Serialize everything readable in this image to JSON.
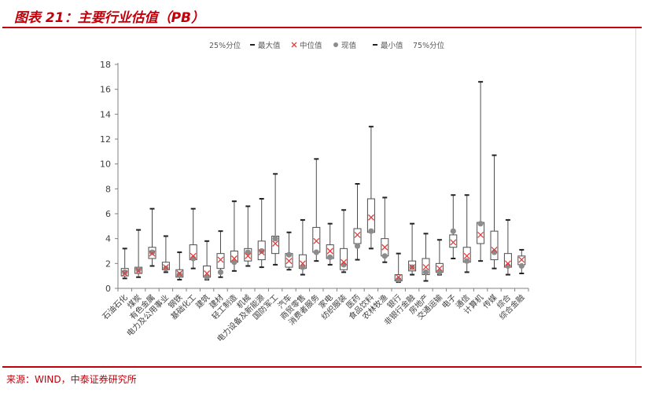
{
  "title": "图表 21：主要行业估值（PB）",
  "source": "来源：WIND，中泰证券研究所",
  "colors": {
    "accent": "#c0000b",
    "box": "#4d4d4d",
    "median": "#e04040",
    "current": "#8c8c8c"
  },
  "chart_data": {
    "type": "box",
    "legend": {
      "position": "top",
      "items": [
        "25%分位",
        "最大值",
        "中位值",
        "现值",
        "最小值",
        "75%分位"
      ]
    },
    "ylim": [
      0,
      18
    ],
    "yticks": [
      "0",
      "2",
      "4",
      "6",
      "8",
      "10",
      "12",
      "14",
      "16",
      "18"
    ],
    "grid": false,
    "categories": [
      "石油石化",
      "煤炭",
      "有色金属",
      "电力及公用事业",
      "钢铁",
      "基础化工",
      "建筑",
      "建材",
      "轻工制造",
      "机械",
      "电力设备及新能源",
      "国防军工",
      "汽车",
      "商贸零售",
      "消费者服务",
      "家电",
      "纺织服装",
      "医药",
      "食品饮料",
      "农林牧渔",
      "银行",
      "非银行金融",
      "房地产",
      "交通运输",
      "电子",
      "通信",
      "计算机",
      "传媒",
      "综合",
      "综合金融"
    ],
    "series": [
      {
        "name": "最大值",
        "values": [
          3.2,
          4.7,
          6.4,
          4.2,
          2.9,
          6.4,
          3.8,
          4.6,
          7.0,
          6.6,
          7.2,
          9.2,
          4.5,
          5.5,
          10.4,
          5.2,
          6.3,
          8.4,
          13.0,
          7.3,
          2.8,
          5.2,
          4.4,
          3.9,
          7.5,
          7.5,
          16.6,
          10.7,
          5.5,
          3.1
        ]
      },
      {
        "name": "75%分位",
        "values": [
          1.6,
          1.7,
          3.3,
          2.1,
          1.5,
          3.5,
          1.8,
          2.8,
          3.0,
          3.2,
          3.8,
          4.2,
          2.8,
          2.7,
          4.9,
          3.5,
          3.2,
          4.8,
          7.2,
          4.0,
          1.1,
          2.2,
          2.4,
          2.0,
          4.3,
          3.3,
          5.3,
          4.6,
          2.8,
          2.6
        ]
      },
      {
        "name": "中位值",
        "values": [
          1.2,
          1.4,
          2.8,
          1.7,
          1.2,
          2.6,
          1.2,
          2.3,
          2.4,
          2.6,
          2.9,
          3.6,
          2.2,
          2.0,
          3.8,
          3.0,
          2.1,
          4.3,
          5.7,
          3.3,
          0.9,
          1.7,
          1.7,
          1.6,
          3.7,
          2.6,
          4.3,
          3.1,
          2.0,
          2.3
        ]
      },
      {
        "name": "25%分位",
        "values": [
          1.0,
          1.2,
          2.4,
          1.5,
          0.9,
          2.3,
          0.9,
          1.6,
          2.1,
          2.2,
          2.3,
          2.8,
          1.7,
          1.6,
          2.9,
          2.4,
          1.5,
          3.6,
          4.5,
          2.6,
          0.6,
          1.4,
          1.1,
          1.3,
          3.3,
          2.1,
          3.6,
          2.3,
          1.7,
          1.9
        ]
      },
      {
        "name": "最小值",
        "values": [
          0.8,
          0.9,
          1.8,
          1.3,
          0.7,
          1.6,
          0.7,
          0.9,
          1.4,
          1.8,
          1.7,
          1.9,
          1.5,
          1.1,
          2.2,
          1.9,
          1.3,
          2.3,
          3.2,
          2.1,
          0.5,
          1.1,
          0.6,
          1.1,
          2.4,
          1.3,
          2.2,
          1.6,
          1.1,
          1.2
        ]
      },
      {
        "name": "现值",
        "values": [
          1.3,
          1.5,
          2.9,
          1.6,
          1.1,
          2.4,
          0.9,
          1.3,
          2.1,
          2.9,
          3.0,
          4.0,
          2.7,
          1.7,
          2.9,
          2.5,
          1.9,
          3.4,
          4.6,
          2.6,
          0.7,
          1.7,
          1.3,
          1.3,
          4.6,
          2.2,
          5.2,
          2.9,
          1.8,
          1.8
        ]
      }
    ]
  }
}
